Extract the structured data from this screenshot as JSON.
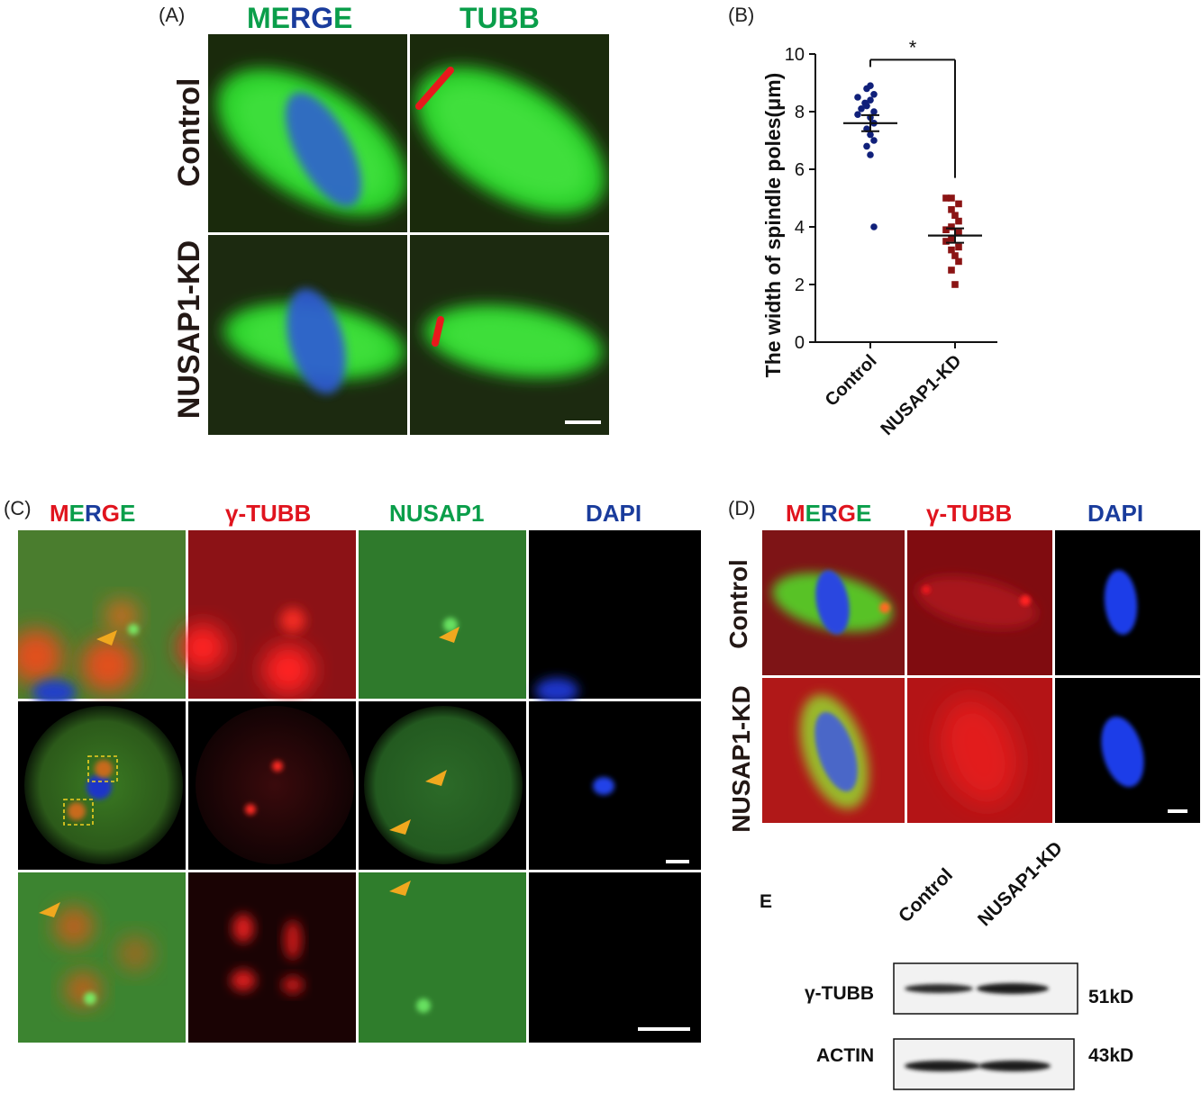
{
  "colors": {
    "red": "#e0141e",
    "green": "#0a9e4a",
    "blue": "#1a3c9c",
    "dark": "#231815",
    "fluor_green": "#2fd63a",
    "fluor_red": "#e8191c",
    "fluor_blue": "#1d3fe0",
    "arrow": "#f0a81e",
    "scatter_control": "#10207a",
    "scatter_kd": "#8b1414"
  },
  "panel_a": {
    "letter": "(A)",
    "headers": {
      "merge_letters": [
        "M",
        "E",
        "R",
        "G",
        "E"
      ],
      "tubb": "TUBB"
    },
    "rows": [
      "Control",
      "NUSAP1-KD"
    ]
  },
  "panel_b": {
    "letter": "(B)"
  },
  "chart_data": {
    "type": "scatter",
    "ylabel": "The width of spindle poles(μm)",
    "xlabel": "",
    "categories": [
      "Control",
      "NUSAP1-KD"
    ],
    "ylim": [
      0,
      10
    ],
    "yticks": [
      "0",
      "2",
      "4",
      "6",
      "8",
      "10"
    ],
    "series": [
      {
        "name": "Control",
        "mean": 7.6,
        "sem": 0.28,
        "values": [
          8.8,
          8.9,
          8.6,
          8.5,
          8.4,
          8.3,
          8.2,
          8.1,
          8.0,
          7.9,
          7.8,
          7.6,
          7.4,
          7.2,
          7.0,
          6.8,
          6.5,
          4.0
        ]
      },
      {
        "name": "NUSAP1-KD",
        "mean": 3.7,
        "sem": 0.25,
        "values": [
          5.0,
          5.0,
          4.8,
          4.6,
          4.4,
          4.2,
          4.0,
          3.9,
          3.8,
          3.6,
          3.5,
          3.3,
          3.2,
          3.0,
          2.8,
          2.5,
          2.0
        ]
      }
    ],
    "significance": "*",
    "grid": false
  },
  "panel_c": {
    "letter": "(C)",
    "headers": {
      "merge_letters": [
        "M",
        "E",
        "R",
        "G",
        "E"
      ],
      "gtubb": "γ-TUBB",
      "nusap1": "NUSAP1",
      "dapi": "DAPI"
    }
  },
  "panel_d": {
    "letter": "(D)",
    "headers": {
      "merge_letters": [
        "M",
        "E",
        "R",
        "G",
        "E"
      ],
      "gtubb": "γ-TUBB",
      "dapi": "DAPI"
    },
    "rows": [
      "Control",
      "NUSAP1-KD"
    ]
  },
  "panel_e": {
    "letter": "E",
    "lanes": [
      "Control",
      "NUSAP1-KD"
    ],
    "blots": [
      {
        "name": "γ-TUBB",
        "size": "51kD"
      },
      {
        "name": "ACTIN",
        "size": "43kD"
      }
    ]
  }
}
